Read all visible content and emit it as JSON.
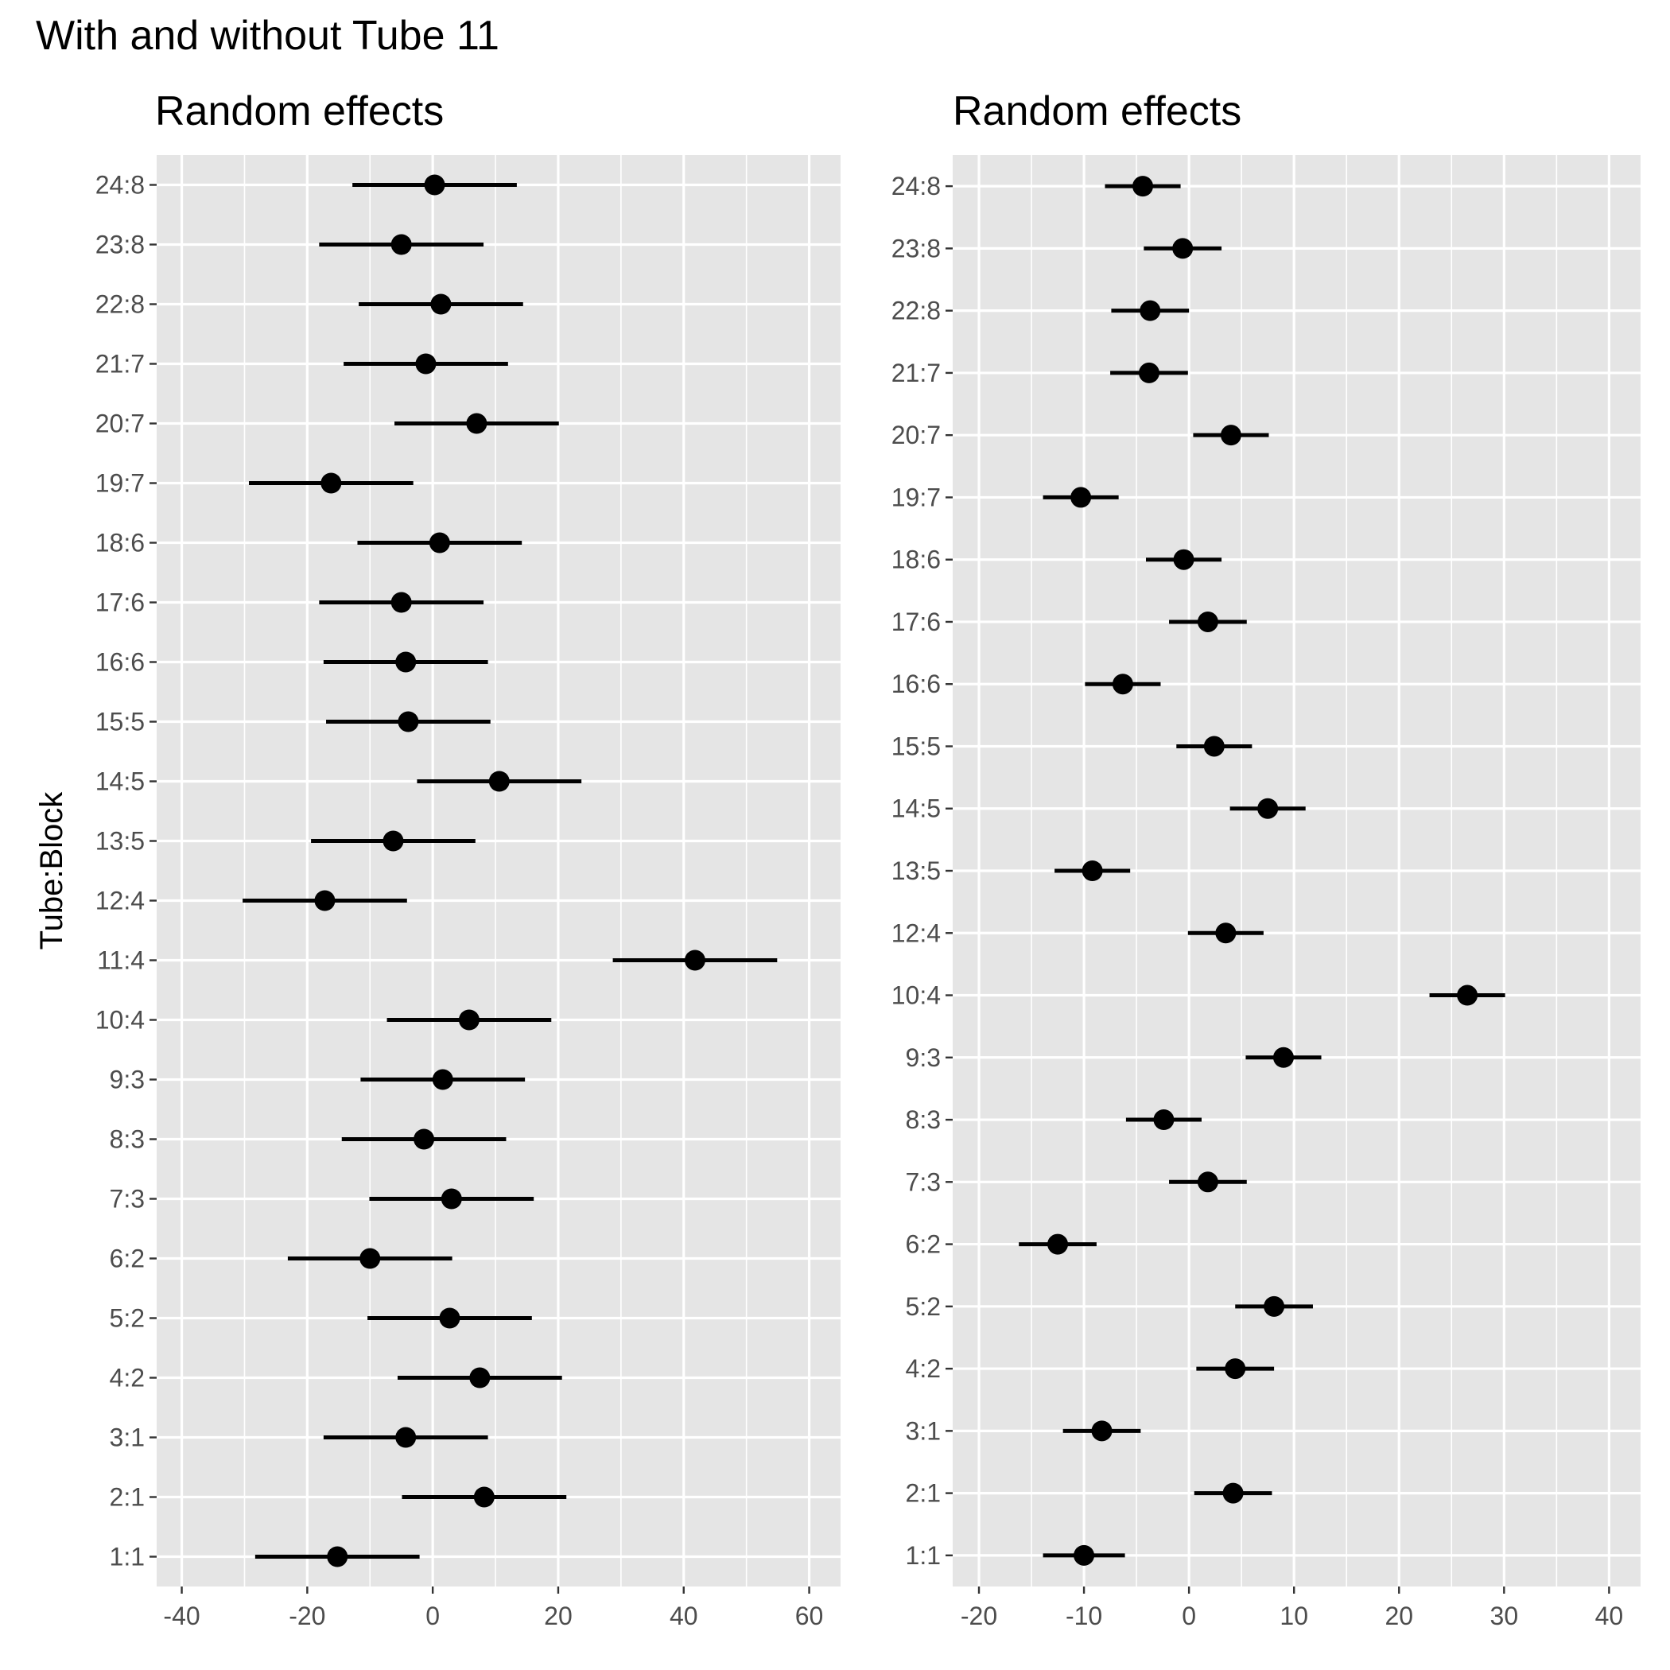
{
  "title": "With and without Tube 11",
  "chart_data": [
    {
      "type": "scatter",
      "title": "Random effects",
      "ylabel": "Tube:Block",
      "xlabel": "",
      "xlim": [
        -44,
        65
      ],
      "xticks": [
        -40,
        -20,
        0,
        20,
        40,
        60
      ],
      "xtick_labels": [
        "-40",
        "-20",
        "0",
        "20",
        "40",
        "60"
      ],
      "grid": true,
      "categories": [
        "1:1",
        "2:1",
        "3:1",
        "4:2",
        "5:2",
        "6:2",
        "7:3",
        "8:3",
        "9:3",
        "10:4",
        "11:4",
        "12:4",
        "13:5",
        "14:5",
        "15:5",
        "16:6",
        "17:6",
        "18:6",
        "19:7",
        "20:7",
        "21:7",
        "22:8",
        "23:8",
        "24:8"
      ],
      "values": [
        -15.2,
        8.2,
        -4.3,
        7.5,
        2.7,
        -10.0,
        3.0,
        -1.4,
        1.6,
        5.8,
        41.8,
        -17.2,
        -6.3,
        10.6,
        -3.9,
        -4.3,
        -5.0,
        1.1,
        -16.2,
        7.0,
        -1.1,
        1.3,
        -5.0,
        0.3
      ],
      "lower": [
        -28.3,
        -4.9,
        -17.4,
        -5.6,
        -10.4,
        -23.1,
        -10.1,
        -14.5,
        -11.5,
        -7.3,
        28.7,
        -30.3,
        -19.4,
        -2.5,
        -17.0,
        -17.4,
        -18.1,
        -12.0,
        -29.3,
        -6.1,
        -14.2,
        -11.8,
        -18.1,
        -12.8
      ],
      "upper": [
        -2.1,
        21.3,
        8.8,
        20.6,
        15.8,
        3.1,
        16.1,
        11.7,
        14.7,
        18.9,
        54.9,
        -4.1,
        6.8,
        23.7,
        9.2,
        8.8,
        8.1,
        14.2,
        -3.1,
        20.1,
        12.0,
        14.4,
        8.1,
        13.4
      ]
    },
    {
      "type": "scatter",
      "title": "Random effects",
      "ylabel": "",
      "xlabel": "",
      "xlim": [
        -22.5,
        43
      ],
      "xticks": [
        -20,
        -10,
        0,
        10,
        20,
        30,
        40
      ],
      "xtick_labels": [
        "-20",
        "-10",
        "0",
        "10",
        "20",
        "30",
        "40"
      ],
      "grid": true,
      "categories": [
        "1:1",
        "2:1",
        "3:1",
        "4:2",
        "5:2",
        "6:2",
        "7:3",
        "8:3",
        "9:3",
        "10:4",
        "12:4",
        "13:5",
        "14:5",
        "15:5",
        "16:6",
        "17:6",
        "18:6",
        "19:7",
        "20:7",
        "21:7",
        "22:8",
        "23:8",
        "24:8"
      ],
      "values": [
        -10.0,
        4.2,
        -8.3,
        4.4,
        8.1,
        -12.5,
        1.8,
        -2.4,
        9.0,
        26.5,
        3.5,
        -9.2,
        7.5,
        2.4,
        -6.3,
        1.8,
        -0.5,
        -10.3,
        4.0,
        -3.8,
        -3.7,
        -0.6,
        -4.4
      ],
      "lower": [
        -13.9,
        0.5,
        -12.0,
        0.7,
        4.4,
        -16.2,
        -1.9,
        -6.0,
        5.4,
        22.9,
        -0.1,
        -12.8,
        3.9,
        -1.2,
        -9.9,
        -1.9,
        -4.1,
        -13.9,
        0.4,
        -7.5,
        -7.4,
        -4.3,
        -8.0
      ],
      "upper": [
        -6.1,
        7.9,
        -4.6,
        8.1,
        11.8,
        -8.8,
        5.5,
        1.2,
        12.6,
        30.1,
        7.1,
        -5.6,
        11.1,
        6.0,
        -2.7,
        5.5,
        3.1,
        -6.7,
        7.6,
        -0.1,
        0.0,
        3.1,
        -0.8
      ]
    }
  ]
}
